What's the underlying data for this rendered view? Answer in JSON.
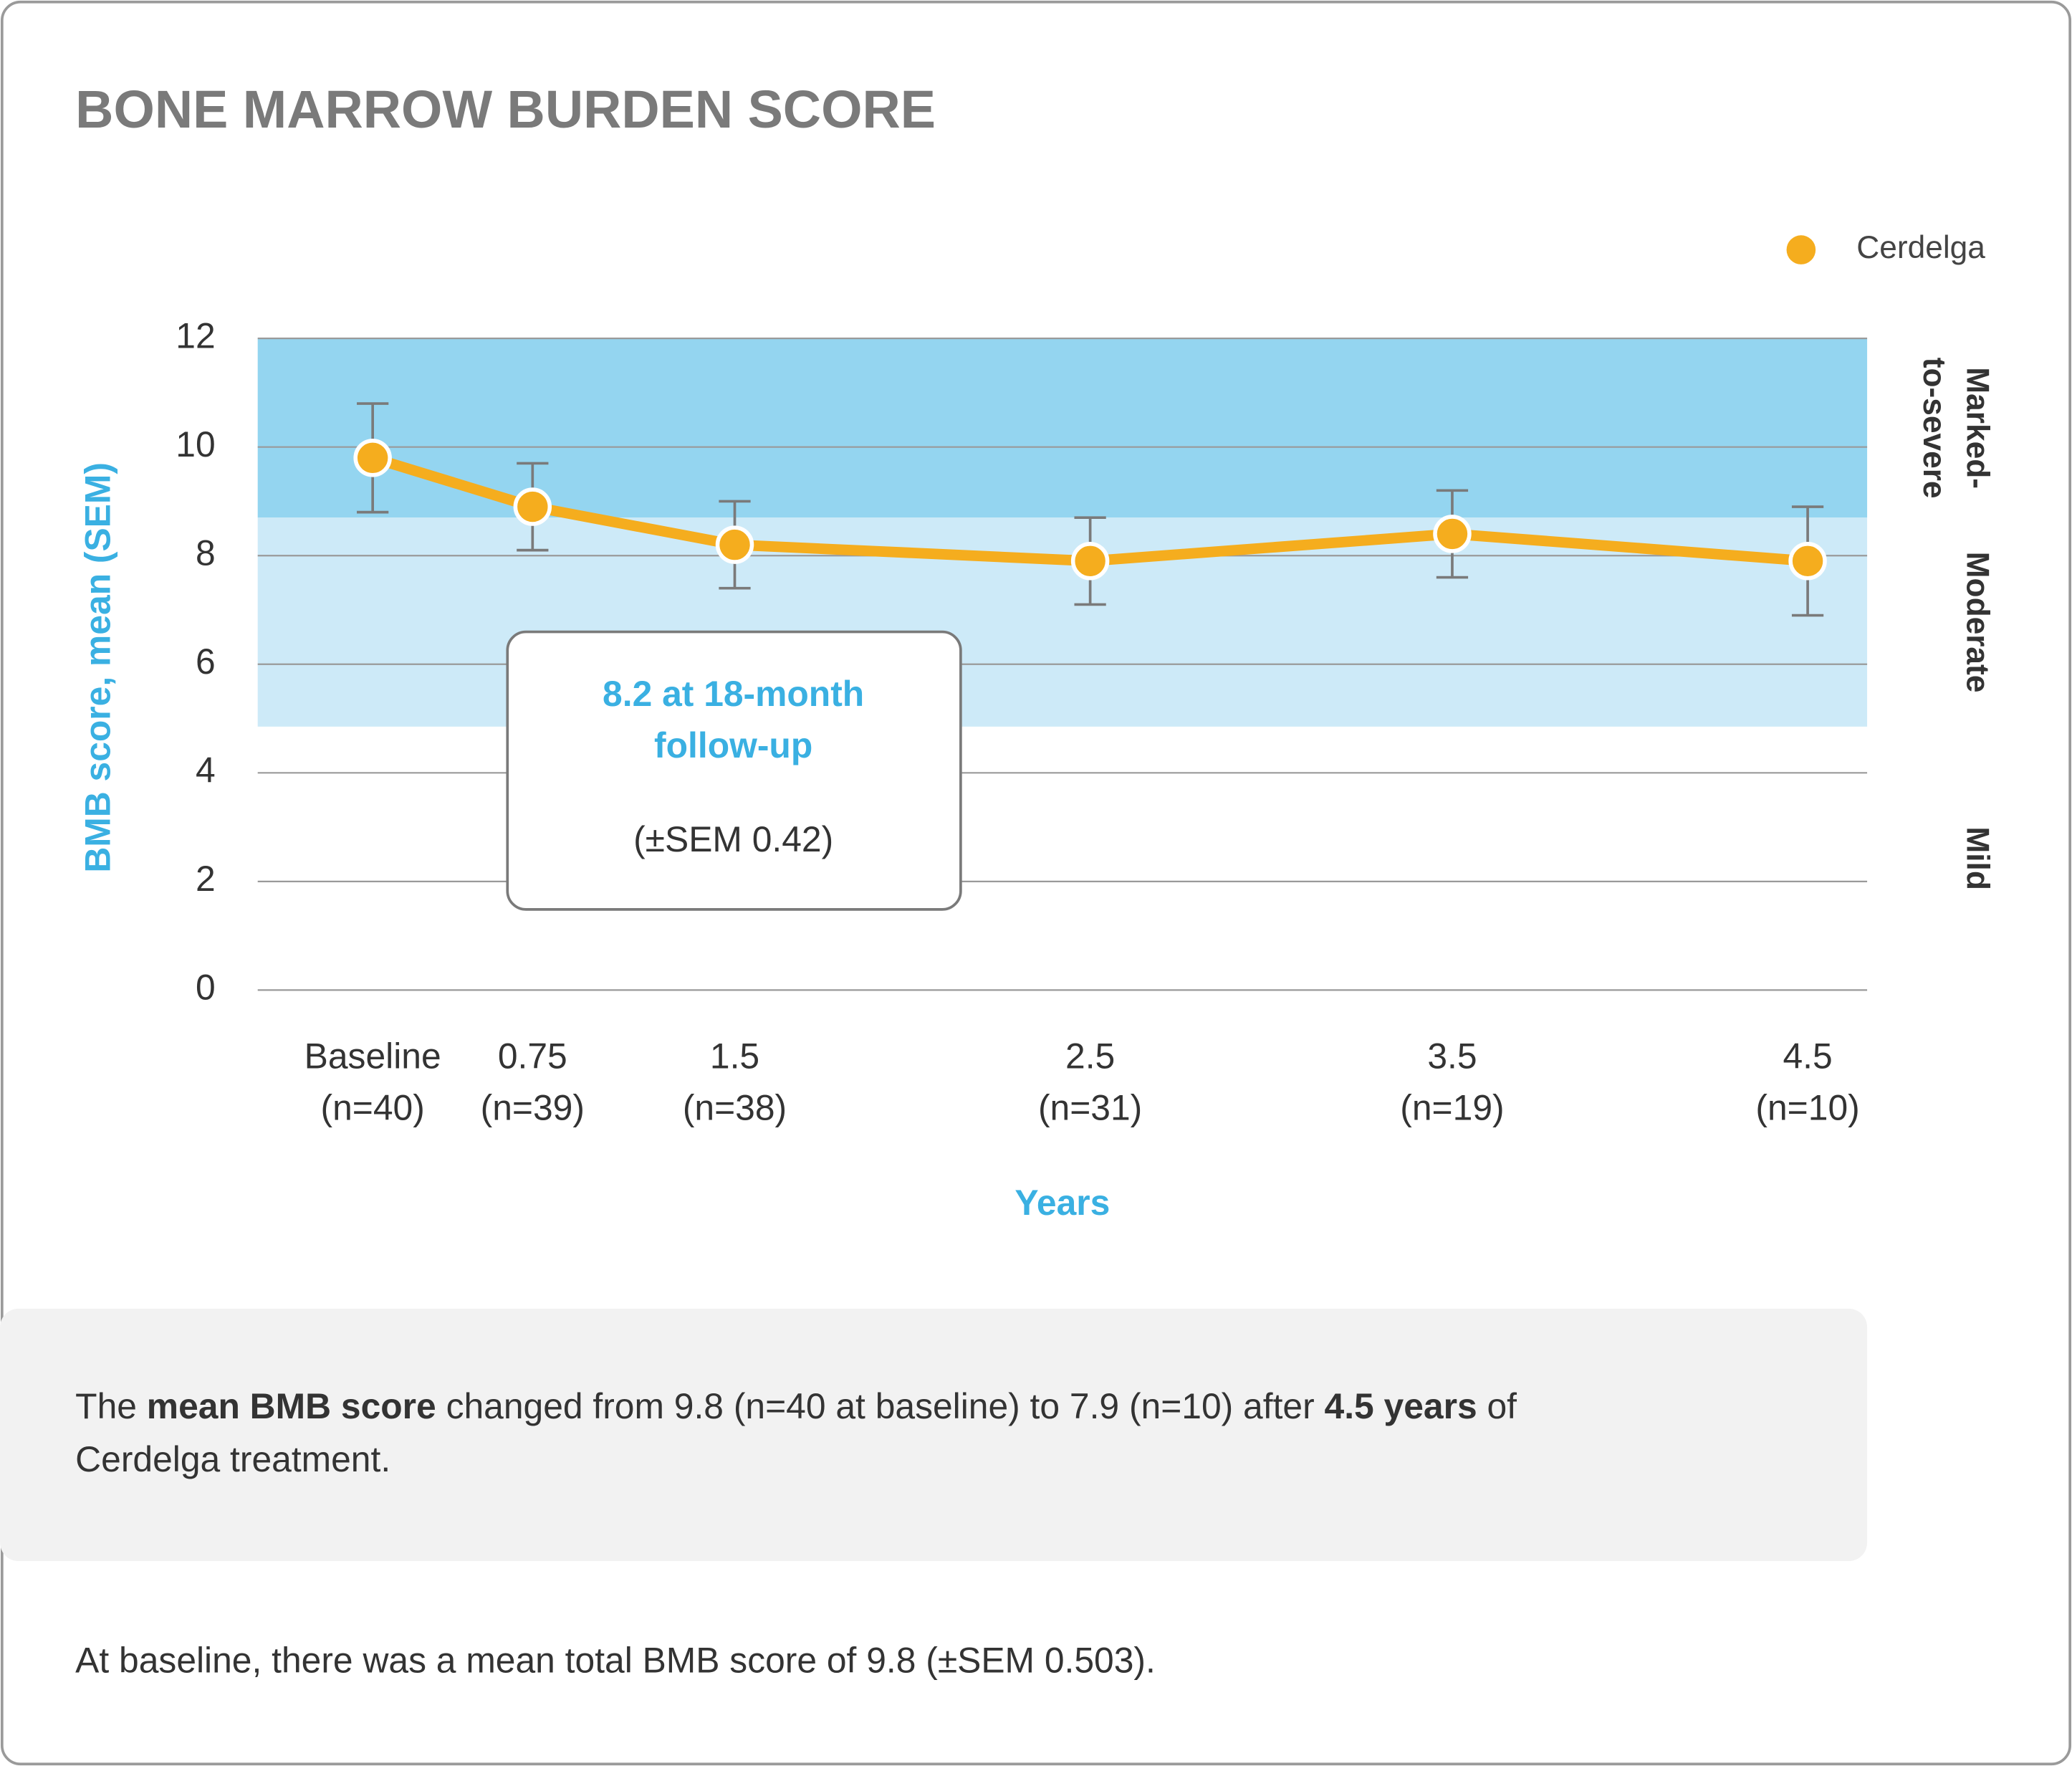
{
  "chart_data": {
    "type": "line",
    "title": "BONE MARROW BURDEN SCORE",
    "ylabel": "BMB score, mean (SEM)",
    "xlabel": "Years",
    "categories": [
      "Baseline",
      "0.75",
      "1.5",
      "2.5",
      "3.5",
      "4.5"
    ],
    "sample_sizes": [
      "(n=40)",
      "(n=39)",
      "(n=38)",
      "(n=31)",
      "(n=19)",
      "(n=10)"
    ],
    "series": [
      {
        "name": "Cerdelga",
        "color": "#f5ad1e",
        "values": [
          9.8,
          8.9,
          8.2,
          7.9,
          8.4,
          7.9
        ],
        "errors": [
          1.0,
          0.8,
          0.8,
          0.8,
          0.8,
          1.0
        ]
      }
    ],
    "ylim": [
      0,
      12
    ],
    "yticks": [
      0,
      2,
      4,
      6,
      8,
      10,
      12
    ],
    "grid": true,
    "legend": "top-right",
    "bands": [
      {
        "label_lines": [
          "Marked-",
          "to-severe"
        ],
        "from": 8.7,
        "to": 12,
        "color": "#94d5f0"
      },
      {
        "label_lines": [
          "Moderate"
        ],
        "from": 4.85,
        "to": 8.7,
        "color": "#cdeaf8"
      },
      {
        "label_lines": [
          "Mild"
        ],
        "from": 0,
        "to": 4.85,
        "color": "#ffffff"
      }
    ],
    "callout": {
      "lines": [
        "8.2 at 18-month",
        "follow-up"
      ],
      "note": "(±SEM 0.42)"
    }
  },
  "summary": {
    "lines": [
      [
        {
          "text": "The "
        },
        {
          "text": "mean BMB score",
          "bold": true
        },
        {
          "text": " changed from 9.8 (n=40 at baseline) to 7.9 (n=10) after "
        },
        {
          "text": "4.5 years",
          "bold": true
        },
        {
          "text": " of"
        }
      ],
      [
        {
          "text": "Cerdelga treatment."
        }
      ]
    ]
  },
  "footnote": "At baseline, there was a mean total BMB score of 9.8 (±SEM 0.503)."
}
